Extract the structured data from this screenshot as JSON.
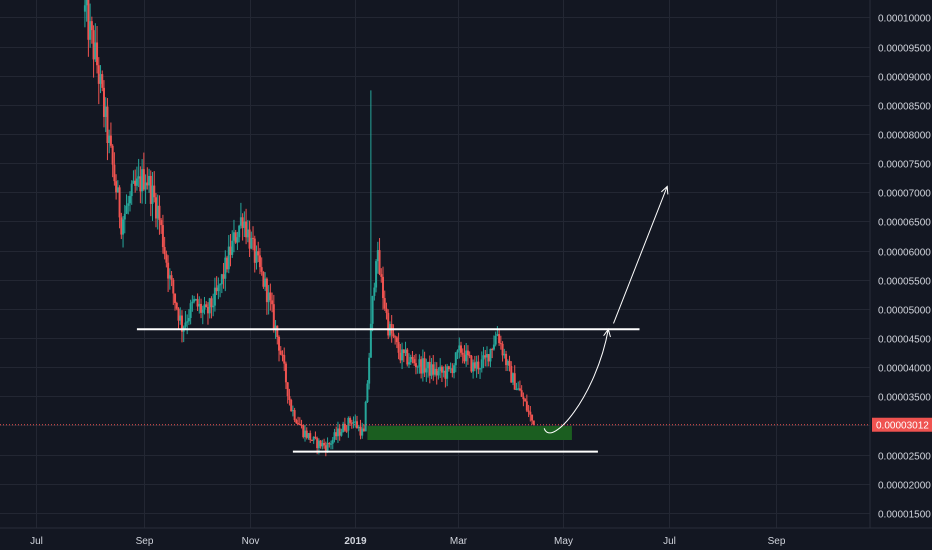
{
  "chart_data": {
    "type": "candlestick",
    "title": "",
    "xlabel": "",
    "ylabel": "",
    "x_axis": {
      "tick_labels": [
        "Jul",
        "Sep",
        "Nov",
        "2019",
        "Mar",
        "May",
        "Jul",
        "Sep"
      ],
      "bold_labels": [
        "2019"
      ],
      "range": [
        "2018-06-10",
        "2019-10-25"
      ]
    },
    "y_axis": {
      "position": "right",
      "range": [
        1.24e-05,
        0.000103
      ],
      "tick_values": [
        1.5e-05,
        2e-05,
        2.5e-05,
        3e-05,
        3.5e-05,
        4e-05,
        4.5e-05,
        5e-05,
        5.5e-05,
        6e-05,
        6.5e-05,
        7e-05,
        7.5e-05,
        8e-05,
        8.5e-05,
        9e-05,
        9.5e-05,
        0.0001
      ],
      "tick_labels": [
        "0.00001500",
        "0.00002000",
        "0.00002500",
        "0.00003000",
        "0.00003500",
        "0.00004000",
        "0.00004500",
        "0.00005000",
        "0.00005500",
        "0.00006000",
        "0.00006500",
        "0.00007000",
        "0.00007500",
        "0.00008000",
        "0.00008500",
        "0.00009000",
        "0.00009500",
        "0.00010000"
      ]
    },
    "grid": true,
    "colors": {
      "background": "#131722",
      "grid": "#232733",
      "up_candle": "#26a69a",
      "down_candle": "#ef5350",
      "axis_text": "#d1d4dc",
      "support_resistance_line": "#ffffff",
      "support_zone": "#1b5e20",
      "price_badge": "#ef5350",
      "projection_arrow": "#ffffff"
    },
    "current_price": {
      "value": 3.012e-05,
      "label": "0.00003012"
    },
    "price_path": [
      {
        "date": "2018-07-29",
        "price": 0.000101
      },
      {
        "date": "2018-08-05",
        "price": 9.2e-05
      },
      {
        "date": "2018-08-12",
        "price": 7.8e-05
      },
      {
        "date": "2018-08-19",
        "price": 6.5e-05
      },
      {
        "date": "2018-08-26",
        "price": 7e-05
      },
      {
        "date": "2018-09-02",
        "price": 7.3e-05
      },
      {
        "date": "2018-09-09",
        "price": 6.7e-05
      },
      {
        "date": "2018-09-16",
        "price": 5.5e-05
      },
      {
        "date": "2018-09-23",
        "price": 4.7e-05
      },
      {
        "date": "2018-09-30",
        "price": 5.1e-05
      },
      {
        "date": "2018-10-07",
        "price": 4.9e-05
      },
      {
        "date": "2018-10-14",
        "price": 5.3e-05
      },
      {
        "date": "2018-10-21",
        "price": 6e-05
      },
      {
        "date": "2018-10-28",
        "price": 6.6e-05
      },
      {
        "date": "2018-11-04",
        "price": 5.9e-05
      },
      {
        "date": "2018-11-11",
        "price": 5.3e-05
      },
      {
        "date": "2018-11-18",
        "price": 4.4e-05
      },
      {
        "date": "2018-11-25",
        "price": 3.3e-05
      },
      {
        "date": "2018-12-02",
        "price": 2.9e-05
      },
      {
        "date": "2018-12-09",
        "price": 2.7e-05
      },
      {
        "date": "2018-12-16",
        "price": 2.65e-05
      },
      {
        "date": "2018-12-23",
        "price": 2.9e-05
      },
      {
        "date": "2018-12-30",
        "price": 3.1e-05
      },
      {
        "date": "2019-01-06",
        "price": 2.85e-05
      },
      {
        "date": "2019-01-13",
        "price": 6e-05
      },
      {
        "date": "2019-01-20",
        "price": 4.7e-05
      },
      {
        "date": "2019-01-27",
        "price": 4.2e-05
      },
      {
        "date": "2019-02-03",
        "price": 4.1e-05
      },
      {
        "date": "2019-02-10",
        "price": 4e-05
      },
      {
        "date": "2019-02-17",
        "price": 3.9e-05
      },
      {
        "date": "2019-02-24",
        "price": 3.9e-05
      },
      {
        "date": "2019-03-03",
        "price": 4.3e-05
      },
      {
        "date": "2019-03-10",
        "price": 4e-05
      },
      {
        "date": "2019-03-17",
        "price": 4.1e-05
      },
      {
        "date": "2019-03-24",
        "price": 4.6e-05
      },
      {
        "date": "2019-03-31",
        "price": 3.9e-05
      },
      {
        "date": "2019-04-07",
        "price": 3.5e-05
      },
      {
        "date": "2019-04-14",
        "price": 3.01e-05
      }
    ],
    "annotations": [
      {
        "type": "horizontal_line",
        "name": "resistance",
        "value": 4.65e-05,
        "from": "2018-08-28",
        "to": "2019-06-14"
      },
      {
        "type": "horizontal_line",
        "name": "support",
        "value": 2.55e-05,
        "from": "2018-11-26",
        "to": "2019-05-21"
      },
      {
        "type": "zone",
        "name": "accumulation-zone",
        "y_range": [
          2.75e-05,
          2.99e-05
        ],
        "from": "2019-01-08",
        "to": "2019-05-06"
      },
      {
        "type": "curve_arrow",
        "name": "rounded-bottom-projection",
        "points": [
          {
            "date": "2019-04-20",
            "price": 2.95e-05
          },
          {
            "date": "2019-04-24",
            "price": 2.8e-05
          },
          {
            "date": "2019-05-20",
            "price": 3.5e-05
          },
          {
            "date": "2019-05-27",
            "price": 4.65e-05
          }
        ]
      },
      {
        "type": "arrow",
        "name": "breakout-projection",
        "from": {
          "date": "2019-05-30",
          "price": 4.75e-05
        },
        "to": {
          "date": "2019-06-30",
          "price": 7.1e-05
        }
      }
    ]
  }
}
